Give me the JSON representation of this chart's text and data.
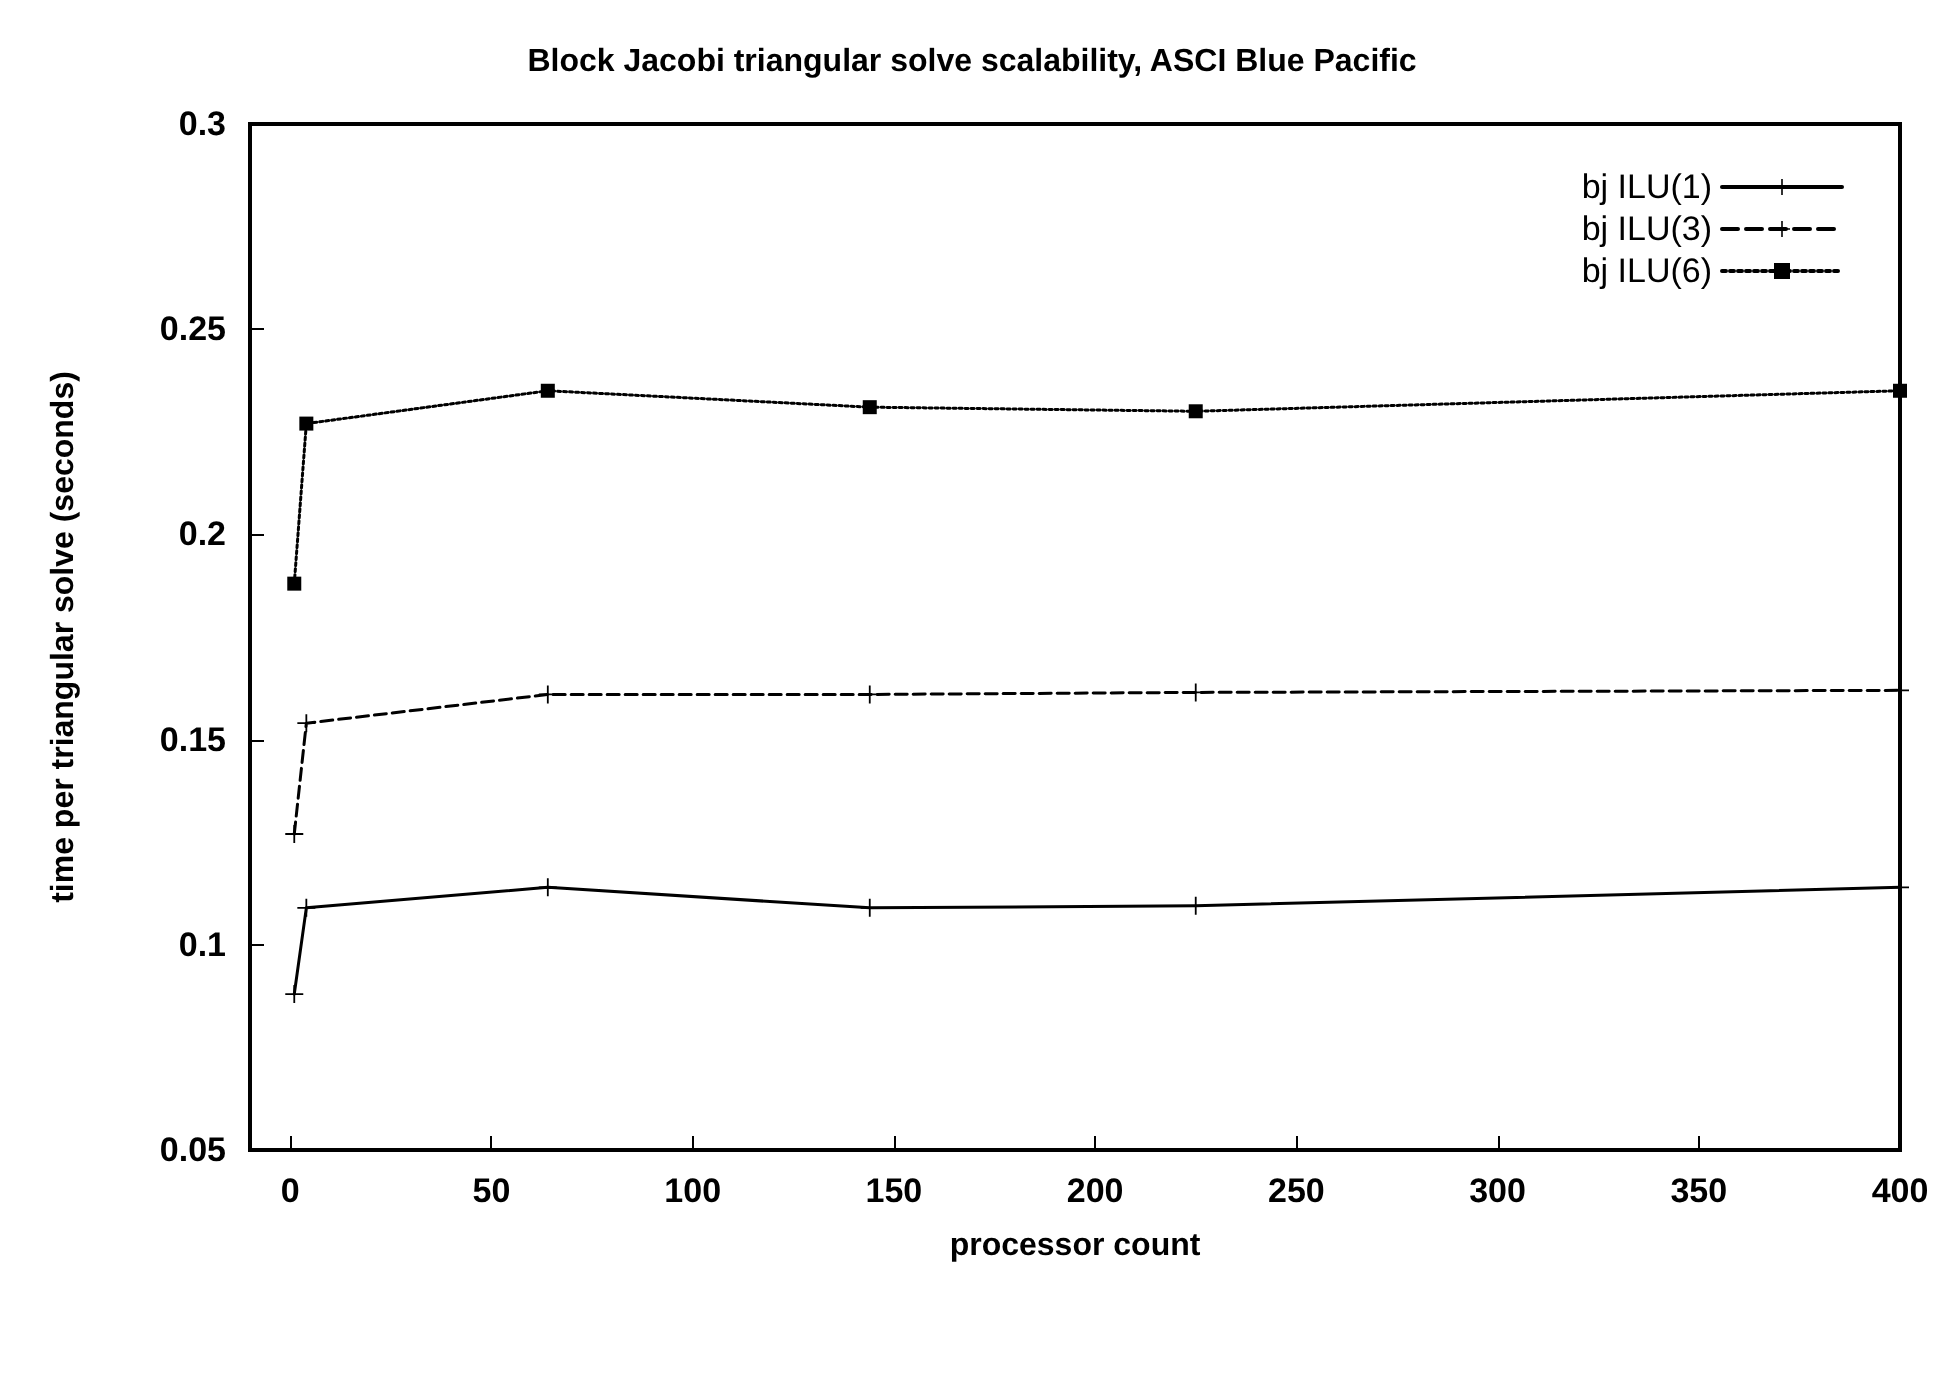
{
  "chart_data": {
    "type": "line",
    "title": "Block Jacobi triangular solve scalability, ASCI Blue Pacific",
    "xlabel": "processor count",
    "ylabel": "time per triangular solve (seconds)",
    "x": [
      1,
      4,
      64,
      144,
      225,
      400
    ],
    "series": [
      {
        "name": "bj ILU(1)",
        "color": "#000000",
        "marker": "cross",
        "line_style": "solid",
        "values": [
          0.088,
          0.109,
          0.114,
          0.109,
          0.1095,
          0.114
        ]
      },
      {
        "name": "bj ILU(3)",
        "color": "#000000",
        "marker": "cross",
        "line_style": "dashed",
        "values": [
          0.127,
          0.154,
          0.161,
          0.161,
          0.1615,
          0.162
        ]
      },
      {
        "name": "bj ILU(6)",
        "color": "#000000",
        "marker": "square",
        "line_style": "dotted",
        "values": [
          0.188,
          0.227,
          0.235,
          0.231,
          0.23,
          0.235
        ]
      }
    ],
    "xlim": [
      -10,
      400
    ],
    "xticks": [
      0,
      50,
      100,
      150,
      200,
      250,
      300,
      350,
      400
    ],
    "ylim": [
      0.05,
      0.3
    ],
    "yticks": [
      0.05,
      0.1,
      0.15,
      0.2,
      0.25,
      0.3
    ],
    "grid": false,
    "legend": "top right"
  }
}
